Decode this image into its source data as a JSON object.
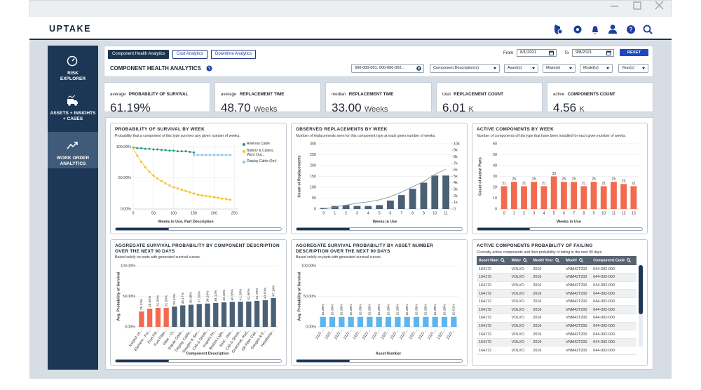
{
  "header": {
    "logo": "UPTAKE"
  },
  "nav": [
    {
      "label": "RISK EXPLORER"
    },
    {
      "label": "ASSETS + INSIGHTS + CASES"
    },
    {
      "label": "WORK ORDER ANALYTICS",
      "active": true
    }
  ],
  "tabs": [
    {
      "label": "Component Health Analytics",
      "active": true
    },
    {
      "label": "Cost Analytics"
    },
    {
      "label": "Downtime Analytics"
    }
  ],
  "date_range": {
    "from_label": "From",
    "from": "8/1/2021",
    "to_label": "To",
    "to": "9/8/2021",
    "reset": "RESET"
  },
  "page_title": "COMPONENT HEALTH ANALYTICS",
  "filters": [
    "000-000-001, 000-000-002...",
    "Component Description(s)",
    "Asset(s)",
    "Make(s)",
    "Model(s)",
    "Year(s)"
  ],
  "kpis": [
    {
      "qualifier": "average",
      "label": "PROBABILITY OF SURVIVAL",
      "value": "61.19%"
    },
    {
      "qualifier": "average",
      "label": "REPLACEMENT TIME",
      "value": "48.70",
      "unit": "Weeks"
    },
    {
      "qualifier": "median",
      "label": "REPLACEMENT TIME",
      "value": "33.00",
      "unit": "Weeks"
    },
    {
      "qualifier": "total",
      "label": "REPLACEMENT COUNT",
      "value": "6.01",
      "unit": "K"
    },
    {
      "qualifier": "active",
      "label": "COMPONENTS COUNT",
      "value": "4.56",
      "unit": "K"
    }
  ],
  "panels": [
    {
      "title": "PROBABILITY OF SURVIVAL BY WEEK",
      "subtitle": "Probability that a component of this type survives any given number of weeks.",
      "chart": {
        "type": "line",
        "xlabel": "Weeks in Use, Part Description",
        "grid": true,
        "legend": "right",
        "xlim": [
          0,
          260
        ],
        "xticks": [
          0,
          50,
          100,
          150,
          200,
          250
        ],
        "ylim": [
          0,
          105
        ],
        "yticks": [
          {
            "value": 0,
            "label": "0.00%"
          },
          {
            "value": 50,
            "label": "50.00%"
          },
          {
            "value": 100,
            "label": "100.00%"
          }
        ],
        "series": [
          {
            "name": "Antenna Cable",
            "color": "#1e9a80",
            "x": [
              0,
              10,
              20,
              30,
              40,
              50,
              60,
              70,
              80,
              90,
              100,
              110,
              120,
              130,
              140,
              150
            ],
            "values": [
              99,
              98,
              98,
              97,
              97,
              96,
              96,
              95,
              95,
              94,
              94,
              93,
              93,
              93,
              92,
              91
            ]
          },
          {
            "name": "Battery & Cables, Worn Out...",
            "color": "#f2c20f",
            "x": [
              0,
              10,
              20,
              30,
              40,
              50,
              60,
              70,
              80,
              90,
              100,
              110,
              120,
              130,
              140,
              150,
              160,
              170,
              180,
              190,
              200,
              210,
              220,
              230,
              240
            ],
            "values": [
              98,
              86,
              76,
              67,
              60,
              54,
              49,
              45,
              41,
              38,
              35,
              33,
              31,
              29,
              27,
              25,
              23,
              22,
              21,
              20,
              19,
              18,
              17,
              16,
              15
            ]
          },
          {
            "name": "Display Cable (5m)",
            "color": "#86c5ef",
            "x": [
              150,
              160,
              170,
              180,
              190,
              200,
              210,
              220,
              230,
              240
            ],
            "values": [
              87,
              87,
              87,
              87,
              87,
              87,
              87,
              87,
              87,
              87
            ]
          }
        ]
      }
    },
    {
      "title": "OBSERVED REPLACEMENTS BY WEEK",
      "subtitle": "Number of replacements seen for this component type at each given number of weeks.",
      "chart": {
        "type": "bar",
        "xlabel": "Weeks in Use",
        "ylabel": "Count of Replacements",
        "grid": true,
        "categories": [
          "0",
          "1",
          "2",
          "3",
          "4",
          "5",
          "6",
          "7",
          "8",
          "9",
          "10",
          "11"
        ],
        "ylim": [
          0,
          300
        ],
        "yticks": [
          0,
          50,
          100,
          150,
          200,
          250,
          300
        ],
        "y2lim": [
          0,
          10000
        ],
        "y2ticks": [
          0,
          {
            "value": 1000,
            "label": "1k"
          },
          {
            "value": 2000,
            "label": "2k"
          },
          {
            "value": 3000,
            "label": "3k"
          },
          {
            "value": 4000,
            "label": "4k"
          },
          {
            "value": 5000,
            "label": "5k"
          },
          {
            "value": 6000,
            "label": "6k"
          },
          {
            "value": 7000,
            "label": "7k"
          },
          {
            "value": 8000,
            "label": "8k"
          },
          {
            "value": 9000,
            "label": "9k"
          },
          {
            "value": 10000,
            "label": "10k"
          }
        ],
        "series": [
          {
            "color": "#4a6075",
            "values": [
              5,
              14,
              18,
              14,
              14,
              18,
              39,
              64,
              93,
              121,
              154,
              154
            ]
          },
          {
            "color": "#8c96a0",
            "axis": "y2",
            "values": [
              50,
              300,
              600,
              900,
              1100,
              1400,
              1900,
              2600,
              3400,
              4200,
              5300,
              6100
            ]
          }
        ]
      }
    },
    {
      "title": "ACTIVE COMPONENTS BY WEEK",
      "subtitle": "Number of components of this type that have been installed for each given number of weeks.",
      "chart": {
        "type": "bar",
        "xlabel": "Weeks in Use",
        "ylabel": "Count of Active Parts",
        "grid": true,
        "categories": [
          "0",
          "1",
          "2",
          "3",
          "4",
          "5",
          "6",
          "7",
          "8",
          "9",
          "10",
          "11",
          "12",
          "13"
        ],
        "ylim": [
          0,
          60
        ],
        "yticks": [
          0,
          10,
          20,
          30,
          40,
          50,
          60
        ],
        "series": [
          {
            "color": "#f36b4f",
            "data_labels": true,
            "values": [
              21,
              25,
              21,
              25,
              21,
              30,
              25,
              25,
              21,
              25,
              21,
              25,
              23,
              21
            ]
          }
        ]
      }
    },
    {
      "title": "AGGREGATE SURVIVAL PROBABILITY BY COMPONENT DESCRIPTION OVER THE NEXT 90 DAYS",
      "subtitle": "Based solely on parts with generated survival curves.",
      "chart": {
        "type": "bar",
        "xlabel": "Component Description",
        "ylabel": "Avg. Probability of Survival",
        "grid": true,
        "categories": [
          "Inspect co...",
          "Element - Ful...",
          "Fuel Filt...",
          "Fuel Filter...",
          "Filter - Oi...",
          "Repair Gask...",
          "Display Cable...",
          "Gauges & Sen...",
          "Cab & Sheet...",
          "Inspect Po...",
          "Brakes Light...",
          "Seal - Hos...",
          "Cab & Sheet...",
          "Grommet, Rad...",
          "Oil Filter Cab...",
          "Gauges & E...",
          "Headlamp..."
        ],
        "ylim": [
          0,
          100
        ],
        "yticks": [
          {
            "value": 0,
            "label": "0.00%"
          },
          {
            "value": 50,
            "label": "50.00%"
          },
          {
            "value": 100,
            "label": "100.00%"
          }
        ],
        "series": [
          {
            "colors": [
              "#f36b4f",
              "#f36b4f",
              "#f36b4f",
              "#f36b4f",
              "#4a6075",
              "#4a6075",
              "#4a6075",
              "#4a6075",
              "#4a6075",
              "#4a6075",
              "#4a6075",
              "#4a6075",
              "#4a6075",
              "#4a6075",
              "#4a6075",
              "#4a6075",
              "#4a6075"
            ],
            "values": [
              25.23,
              29.9,
              31,
              31,
              33.43,
              35.17,
              36.28,
              37.5,
              38.2,
              39.12,
              40.18,
              40.95,
              41.28,
              41.6,
              42.7,
              43.63,
              47.19
            ],
            "value_labels": [
              "25.23%",
              "29.90%",
              "31.00%",
              "31.00%",
              "33.43%",
              "35.17%",
              "36.28%",
              "37.50%",
              "38.20%",
              "39.12%",
              "40.18%",
              "40.95%",
              "41.28%",
              "41.60%",
              "42.70%",
              "43.63%",
              "47.19%"
            ]
          }
        ]
      }
    },
    {
      "title": "AGGREGATE SURVIVAL PROBABILITY BY ASSET NUMBER DESCRIPTION OVER THE NEXT 90 DAYS",
      "subtitle": "Based solely on parts with generated survival curves.",
      "chart": {
        "type": "bar",
        "xlabel": "Asset Number",
        "ylabel": "Avg. Probability of Survival",
        "grid": true,
        "categories": [
          "1327...",
          "1327...",
          "1327...",
          "1327...",
          "1327...",
          "1327...",
          "1327...",
          "1327...",
          "1327...",
          "1327...",
          "1327...",
          "1327...",
          "1327...",
          "1327...",
          "1327..."
        ],
        "ylim": [
          0,
          100
        ],
        "yticks": [
          {
            "value": 0,
            "label": "0.00%"
          },
          {
            "value": 50,
            "label": "50.00%"
          },
          {
            "value": 100,
            "label": "100.00%"
          }
        ],
        "series": [
          {
            "color": "#5cb6ee",
            "values": [
              16.39,
              16.39,
              16.39,
              16.39,
              16.39,
              16.39,
              16.39,
              16.39,
              16.39,
              16.39,
              16.39,
              16.39,
              16.39,
              16.39,
              16.51
            ],
            "value_labels": [
              "16.39%",
              "16.39%",
              "16.39%",
              "16.39%",
              "16.39%",
              "16.39%",
              "16.39%",
              "16.39%",
              "16.39%",
              "16.39%",
              "16.39%",
              "16.39%",
              "16.39%",
              "16.39%",
              "16.51%"
            ]
          }
        ]
      }
    },
    {
      "title": "ACTIVE COMPONENTS PROBABILITY OF FAILING",
      "subtitle": "Currently active components and their probability of failing in the next 90 days.",
      "table": {
        "columns": [
          "Asset Num",
          "Make",
          "Model Year",
          "Model",
          "Component Code"
        ],
        "rows": [
          [
            "164172",
            "VOLVO",
            "2016",
            "VNM42T200",
            "044-002-000"
          ],
          [
            "164172",
            "VOLVO",
            "2016",
            "VNM42T200",
            "044-002-000"
          ],
          [
            "164172",
            "VOLVO",
            "2016",
            "VNM42T200",
            "044-002-000"
          ],
          [
            "164172",
            "VOLVO",
            "2016",
            "VNM42T200",
            "044-002-000"
          ],
          [
            "164172",
            "VOLVO",
            "2016",
            "VNM42T200",
            "044-002-000"
          ],
          [
            "164172",
            "VOLVO",
            "2016",
            "VNM42T200",
            "044-002-000"
          ],
          [
            "164172",
            "VOLVO",
            "2016",
            "VNM42T200",
            "044-002-000"
          ],
          [
            "164172",
            "VOLVO",
            "2016",
            "VNM42T200",
            "044-002-000"
          ],
          [
            "164172",
            "VOLVO",
            "2016",
            "VNM42T200",
            "044-002-000"
          ],
          [
            "164172",
            "VOLVO",
            "2016",
            "VNM42T200",
            "044-002-000"
          ],
          [
            "164172",
            "VOLVO",
            "2016",
            "VNM42T200",
            "044-002-000"
          ]
        ]
      }
    }
  ]
}
